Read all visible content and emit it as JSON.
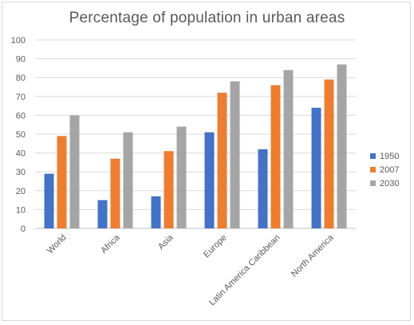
{
  "chart_data": {
    "type": "bar",
    "title": "Percentage of population in urban areas",
    "categories": [
      "World",
      "Africa",
      "Asia",
      "Europe",
      "Latin America Caribbean",
      "North America"
    ],
    "series": [
      {
        "name": "1950",
        "color": "#4472C4",
        "values": [
          29,
          15,
          17,
          51,
          42,
          64
        ]
      },
      {
        "name": "2007",
        "color": "#ED7D31",
        "values": [
          49,
          37,
          41,
          72,
          76,
          79
        ]
      },
      {
        "name": "2030",
        "color": "#A5A5A5",
        "values": [
          60,
          51,
          54,
          78,
          84,
          87
        ]
      }
    ],
    "ylim": [
      0,
      100
    ],
    "yticks": [
      "0",
      "10",
      "20",
      "30",
      "40",
      "50",
      "60",
      "70",
      "80",
      "90",
      "100"
    ],
    "grid": true,
    "legend_position": "right"
  }
}
